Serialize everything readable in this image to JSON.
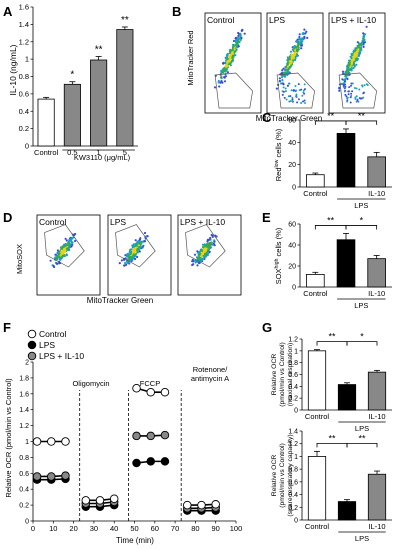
{
  "colors": {
    "white": "#ffffff",
    "black": "#000000",
    "gray": "#888888",
    "darkgray": "#555555"
  },
  "panels": {
    "A": "A",
    "B": "B",
    "C": "C",
    "D": "D",
    "E": "E",
    "F": "F",
    "G": "G"
  },
  "flow_B": {
    "ylabel": "MitoTracker Red",
    "xlabel": "MitoTracker Green",
    "plots": [
      "Control",
      "LPS",
      "LPS + IL-10"
    ]
  },
  "flow_D": {
    "ylabel": "MitoSOX",
    "xlabel": "MitoTracker Green",
    "plots": [
      "Control",
      "LPS",
      "LPS + IL-10"
    ]
  },
  "chart_data": [
    {
      "id": "A",
      "type": "bar",
      "ylabel": "IL-10 (ng/mL)",
      "ylim": [
        0,
        1.6
      ],
      "yticks": [
        "0",
        "0.2",
        "0.4",
        "0.6",
        "0.8",
        "1",
        "1.2",
        "1.4",
        "1.6"
      ],
      "categories": [
        "Control",
        "0.5",
        "1",
        "5"
      ],
      "values": [
        0.54,
        0.71,
        0.99,
        1.34
      ],
      "errors": [
        0.02,
        0.03,
        0.04,
        0.03
      ],
      "fills": [
        "#ffffff",
        "#888888",
        "#888888",
        "#888888"
      ],
      "sig": [
        "",
        "*",
        "**",
        "**"
      ],
      "group_label": "KW3110 (μg/mL)"
    },
    {
      "id": "C",
      "type": "bar",
      "ylabel": "Red^low cells (%)",
      "ylabel_main": "Red",
      "ylabel_sup": "low",
      "ylabel_tail": " cells (%)",
      "ylim": [
        0,
        60
      ],
      "yticks": [
        "0",
        "20",
        "40",
        "60"
      ],
      "values": [
        11,
        48,
        27
      ],
      "errors": [
        1.5,
        4,
        4
      ],
      "fills": [
        "#ffffff",
        "#000000",
        "#888888"
      ],
      "row1": [
        "-",
        "-",
        "IL-10"
      ],
      "row1_labels": [
        "Control",
        "",
        "IL-10"
      ],
      "group_label": "LPS",
      "sig": [
        "**",
        "**"
      ]
    },
    {
      "id": "E",
      "type": "bar",
      "ylabel_main": "SOX",
      "ylabel_sup": "high",
      "ylabel_tail": " cells (%)",
      "ylim": [
        0,
        60
      ],
      "yticks": [
        "0",
        "20",
        "40",
        "60"
      ],
      "values": [
        12,
        45,
        27
      ],
      "errors": [
        2,
        6,
        3
      ],
      "fills": [
        "#ffffff",
        "#000000",
        "#888888"
      ],
      "row1_labels": [
        "Control",
        "",
        "IL-10"
      ],
      "group_label": "LPS",
      "sig": [
        "**",
        "*"
      ]
    },
    {
      "id": "F",
      "type": "line",
      "ylabel": "Relative OCR (pmol/min vs Control)",
      "xlabel": "Time (min)",
      "xlim": [
        0,
        100
      ],
      "ylim": [
        0,
        2
      ],
      "xticks": [
        "0",
        "10",
        "20",
        "30",
        "40",
        "50",
        "60",
        "70",
        "80",
        "90",
        "100"
      ],
      "yticks": [
        "0",
        "0.2",
        "0.4",
        "0.6",
        "0.8",
        "1",
        "1.2",
        "1.4",
        "1.6",
        "1.8",
        "2"
      ],
      "x": [
        2,
        9,
        16,
        26,
        33,
        40,
        51,
        58,
        65,
        76,
        83,
        90
      ],
      "series": [
        {
          "name": "Control",
          "fill": "#ffffff",
          "values": [
            1.0,
            1.0,
            1.0,
            0.26,
            0.26,
            0.28,
            1.67,
            1.62,
            1.62,
            0.2,
            0.2,
            0.21
          ],
          "errors": [
            0.04,
            0.04,
            0.04,
            0.02,
            0.02,
            0.02,
            0.04,
            0.04,
            0.04,
            0.02,
            0.02,
            0.02
          ]
        },
        {
          "name": "LPS",
          "fill": "#000000",
          "values": [
            0.52,
            0.52,
            0.53,
            0.18,
            0.18,
            0.2,
            0.73,
            0.75,
            0.75,
            0.13,
            0.13,
            0.13
          ],
          "errors": [
            0.03,
            0.03,
            0.03,
            0.02,
            0.02,
            0.02,
            0.03,
            0.03,
            0.03,
            0.02,
            0.02,
            0.02
          ]
        },
        {
          "name": "LPS + IL-10",
          "fill": "#888888",
          "values": [
            0.56,
            0.56,
            0.57,
            0.22,
            0.22,
            0.24,
            1.07,
            1.07,
            1.08,
            0.16,
            0.16,
            0.17
          ],
          "errors": [
            0.03,
            0.03,
            0.03,
            0.02,
            0.02,
            0.02,
            0.04,
            0.04,
            0.04,
            0.02,
            0.02,
            0.02
          ]
        }
      ],
      "injections": [
        {
          "x": 23,
          "label": "Oligomycin"
        },
        {
          "x": 47,
          "label": "FCCP"
        },
        {
          "x": 73,
          "label": "Rotenone/\nantimycin A",
          "label1": "Rotenone/",
          "label2": "antimycin A"
        }
      ]
    },
    {
      "id": "G1",
      "type": "bar",
      "ylabel_lines": [
        "Relative OCR",
        "(pmol/min vs Control)",
        "(maximal respiration)"
      ],
      "ylim": [
        0,
        1.2
      ],
      "yticks": [
        "0",
        "0.2",
        "0.4",
        "0.6",
        "0.8",
        "1",
        "1.2"
      ],
      "values": [
        1.0,
        0.43,
        0.64
      ],
      "errors": [
        0.02,
        0.03,
        0.03
      ],
      "fills": [
        "#ffffff",
        "#000000",
        "#888888"
      ],
      "row1_labels": [
        "Control",
        "",
        "IL-10"
      ],
      "group_label": "LPS",
      "sig": [
        "**",
        "*"
      ]
    },
    {
      "id": "G2",
      "type": "bar",
      "ylabel_lines": [
        "Relative OCR",
        "(pmol/min vs Control)",
        "(spare respiratory capacity)"
      ],
      "ylim": [
        0,
        1.4
      ],
      "yticks": [
        "0",
        "0.2",
        "0.4",
        "0.6",
        "0.8",
        "1",
        "1.2",
        "1.4"
      ],
      "values": [
        1.0,
        0.29,
        0.72
      ],
      "errors": [
        0.08,
        0.03,
        0.05
      ],
      "fills": [
        "#ffffff",
        "#000000",
        "#888888"
      ],
      "row1_labels": [
        "Control",
        "",
        "IL-10"
      ],
      "group_label": "LPS",
      "sig": [
        "**",
        "**"
      ]
    }
  ]
}
